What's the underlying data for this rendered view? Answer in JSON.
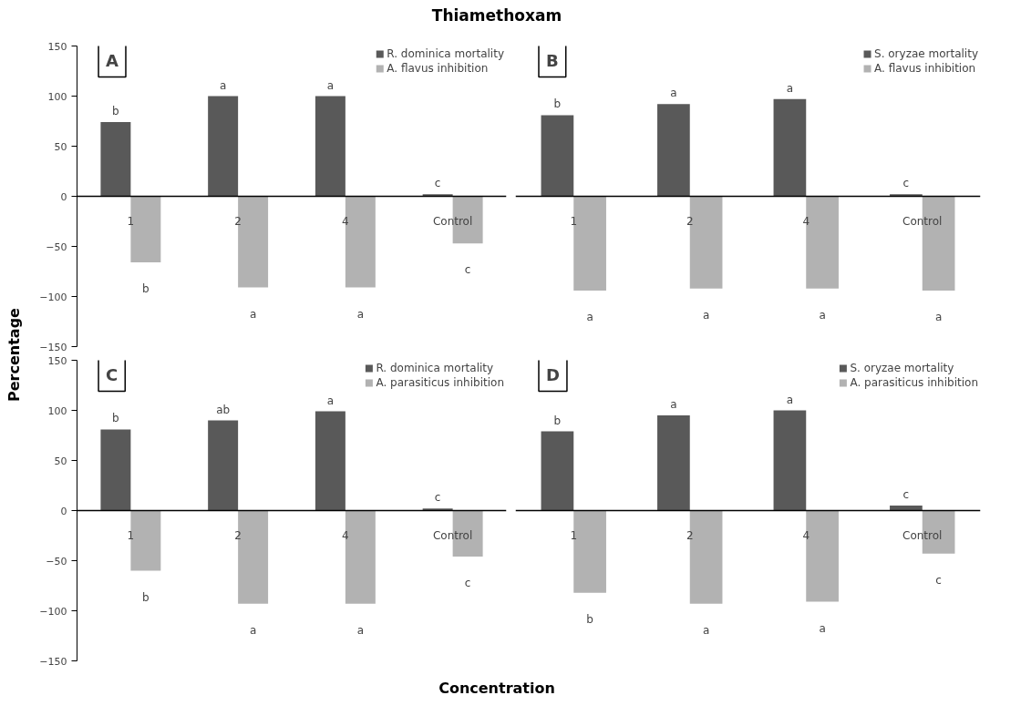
{
  "chart_data": [
    {
      "type": "bar",
      "title": "Thiamethoxam",
      "ylabel": "Percentage",
      "categories": [
        "1",
        "2",
        "4",
        "Control"
      ],
      "series": [
        {
          "name": "R. dominica mortality",
          "color": "#595959",
          "values": [
            74,
            100,
            100,
            2
          ],
          "value_labels": [
            "b",
            "a",
            "a",
            "c"
          ]
        },
        {
          "name": "A. flavus inhibition",
          "color": "#b2b2b2",
          "values": [
            -66,
            -91,
            -91,
            -47
          ],
          "value_labels": [
            "b",
            "a",
            "a",
            "c"
          ]
        }
      ],
      "ylim": [
        -150,
        150
      ],
      "yticks": [
        -150,
        -100,
        -50,
        0,
        50,
        100,
        150
      ],
      "legend": "top right",
      "annotations": [
        "A"
      ]
    },
    {
      "type": "bar",
      "categories": [
        "1",
        "2",
        "4",
        "Control"
      ],
      "series": [
        {
          "name": "S. oryzae mortality",
          "color": "#595959",
          "values": [
            81,
            92,
            97,
            2
          ],
          "value_labels": [
            "b",
            "a",
            "a",
            "c"
          ]
        },
        {
          "name": "A. flavus inhibition",
          "color": "#b2b2b2",
          "values": [
            -94,
            -92,
            -92,
            -94
          ],
          "value_labels": [
            "a",
            "a",
            "a",
            "a"
          ]
        }
      ],
      "ylim": [
        -150,
        150
      ],
      "yticks": [
        -150,
        -100,
        -50,
        0,
        50,
        100,
        150
      ],
      "tick_labels": "x",
      "legend": "top right",
      "annotations": [
        "B"
      ]
    },
    {
      "type": "bar",
      "xlabel": "Concentration",
      "categories": [
        "1",
        "2",
        "4",
        "Control"
      ],
      "series": [
        {
          "name": "R. dominica mortality",
          "color": "#595959",
          "values": [
            81,
            90,
            99,
            2
          ],
          "value_labels": [
            "b",
            "ab",
            "a",
            "c"
          ]
        },
        {
          "name": "A. parasiticus inhibition",
          "color": "#b2b2b2",
          "values": [
            -60,
            -93,
            -93,
            -46
          ],
          "value_labels": [
            "b",
            "a",
            "a",
            "c"
          ]
        }
      ],
      "ylim": [
        -150,
        150
      ],
      "yticks": [
        -150,
        -100,
        -50,
        0,
        50,
        100,
        150
      ],
      "legend": "top right",
      "annotations": [
        "C"
      ]
    },
    {
      "type": "bar",
      "categories": [
        "1",
        "2",
        "4",
        "Control"
      ],
      "series": [
        {
          "name": "S. oryzae mortality",
          "color": "#595959",
          "values": [
            79,
            95,
            100,
            5
          ],
          "value_labels": [
            "b",
            "a",
            "a",
            "c"
          ]
        },
        {
          "name": "A. parasiticus inhibition",
          "color": "#b2b2b2",
          "values": [
            -82,
            -93,
            -91,
            -43
          ],
          "value_labels": [
            "b",
            "a",
            "a",
            "c"
          ]
        }
      ],
      "ylim": [
        -150,
        150
      ],
      "yticks": [
        -150,
        -100,
        -50,
        0,
        50,
        100,
        150
      ],
      "tick_labels": "x",
      "legend": "top right",
      "annotations": [
        "D"
      ]
    }
  ]
}
